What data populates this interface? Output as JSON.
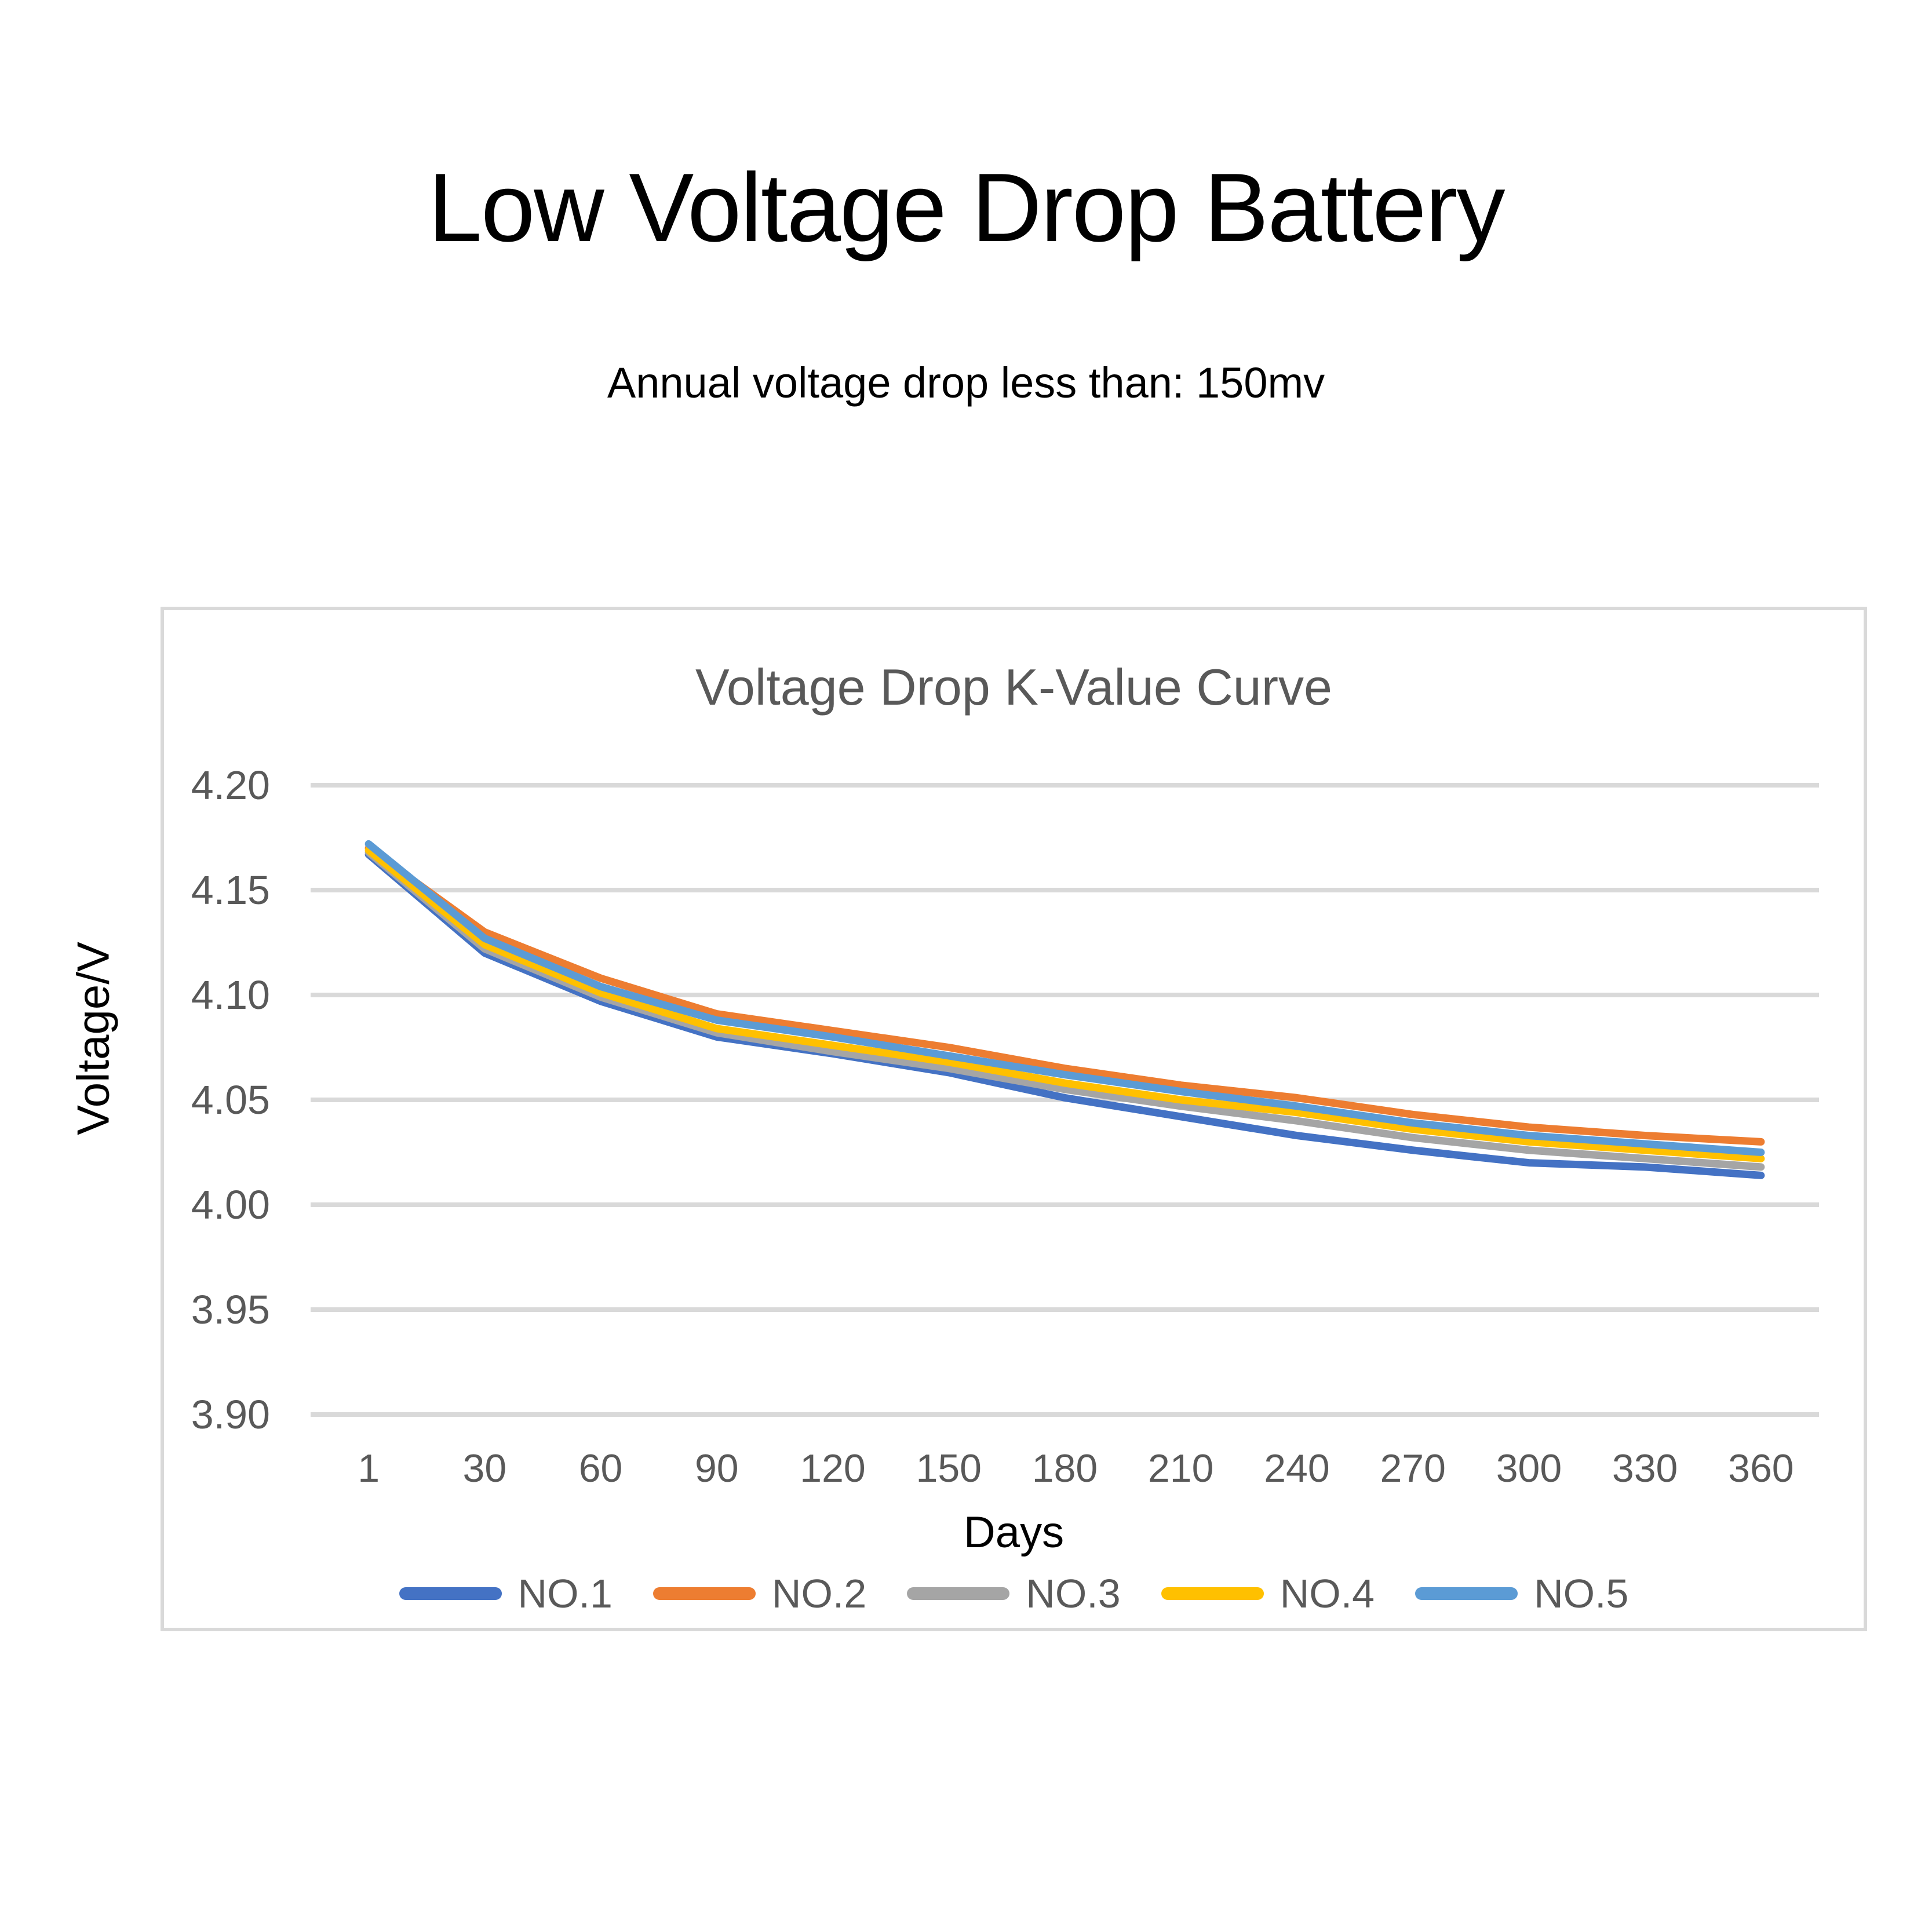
{
  "page": {
    "title": "Low Voltage Drop Battery",
    "subtitle": "Annual voltage drop less than: 150mv"
  },
  "chart_data": {
    "type": "line",
    "title": "Voltage Drop K-Value Curve",
    "xlabel": "Days",
    "ylabel": "Voltage/V",
    "x": [
      1,
      30,
      60,
      90,
      120,
      150,
      180,
      210,
      240,
      270,
      300,
      330,
      360
    ],
    "y_ticks": [
      4.2,
      4.15,
      4.1,
      4.05,
      4.0,
      3.95,
      3.9
    ],
    "ylim": [
      3.9,
      4.2
    ],
    "grid": true,
    "legend_position": "bottom",
    "series": [
      {
        "name": "NO.1",
        "color": "#4472C4",
        "values": [
          4.167,
          4.12,
          4.097,
          4.08,
          4.072,
          4.063,
          4.051,
          4.042,
          4.033,
          4.026,
          4.02,
          4.018,
          4.014
        ]
      },
      {
        "name": "NO.2",
        "color": "#ED7D31",
        "values": [
          4.17,
          4.13,
          4.108,
          4.091,
          4.083,
          4.075,
          4.065,
          4.057,
          4.051,
          4.043,
          4.037,
          4.033,
          4.03
        ]
      },
      {
        "name": "NO.3",
        "color": "#A5A5A5",
        "values": [
          4.168,
          4.122,
          4.099,
          4.082,
          4.073,
          4.065,
          4.055,
          4.047,
          4.04,
          4.032,
          4.026,
          4.022,
          4.018
        ]
      },
      {
        "name": "NO.4",
        "color": "#FFC000",
        "values": [
          4.169,
          4.124,
          4.101,
          4.084,
          4.076,
          4.068,
          4.058,
          4.05,
          4.044,
          4.036,
          4.03,
          4.026,
          4.022
        ]
      },
      {
        "name": "NO.5",
        "color": "#5B9BD5",
        "values": [
          4.172,
          4.127,
          4.104,
          4.088,
          4.08,
          4.071,
          4.062,
          4.054,
          4.047,
          4.039,
          4.033,
          4.029,
          4.025
        ]
      }
    ]
  },
  "style": {
    "axis_text_color": "#595959",
    "chart_title_color": "#595959",
    "legend_text_color": "#595959",
    "axis_title_color": "#000000",
    "grid_color": "#D9D9D9",
    "border_color": "#D9D9D9",
    "background": "#FFFFFF"
  }
}
